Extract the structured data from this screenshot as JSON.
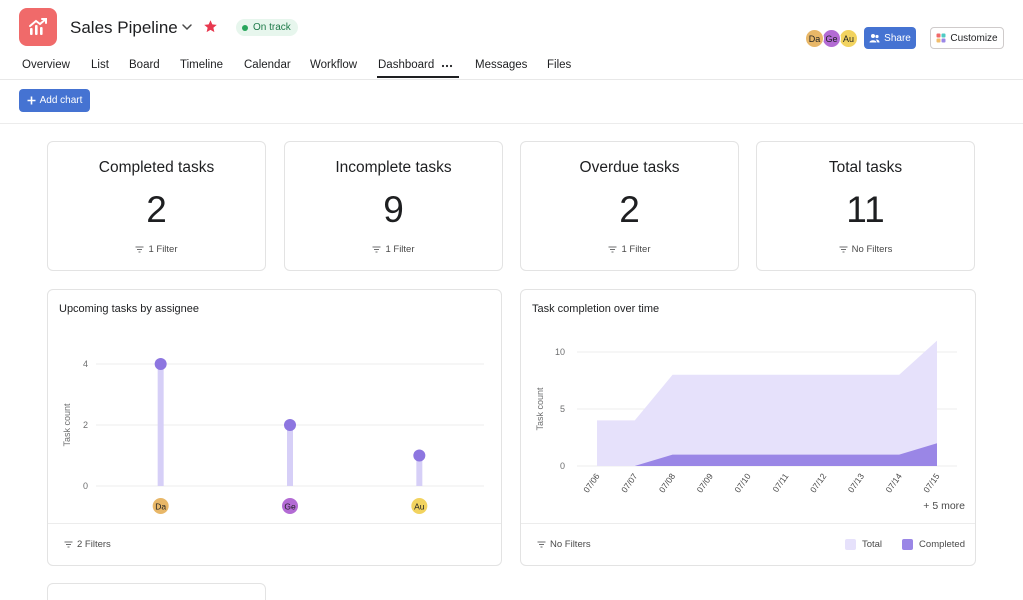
{
  "project": {
    "title": "Sales Pipeline",
    "status": "On track",
    "colors": {
      "brand": "#f06a6a",
      "accent": "#4573d2",
      "status": "#27a55b"
    }
  },
  "header": {
    "avatars": [
      {
        "initials": "Da",
        "color": "#e8b768"
      },
      {
        "initials": "Ge",
        "color": "#b36bd4"
      },
      {
        "initials": "Au",
        "color": "#f2d35f"
      }
    ],
    "share_label": "Share",
    "customize_label": "Customize"
  },
  "tabs": [
    {
      "label": "Overview"
    },
    {
      "label": "List"
    },
    {
      "label": "Board"
    },
    {
      "label": "Timeline"
    },
    {
      "label": "Calendar"
    },
    {
      "label": "Workflow"
    },
    {
      "label": "Dashboard",
      "active": true
    },
    {
      "label": "Messages"
    },
    {
      "label": "Files"
    }
  ],
  "toolbar": {
    "add_chart_label": "Add chart"
  },
  "stats": [
    {
      "title": "Completed tasks",
      "value": "2",
      "filter": "1 Filter"
    },
    {
      "title": "Incomplete tasks",
      "value": "9",
      "filter": "1 Filter"
    },
    {
      "title": "Overdue tasks",
      "value": "2",
      "filter": "1 Filter"
    },
    {
      "title": "Total tasks",
      "value": "11",
      "filter": "No Filters"
    }
  ],
  "charts": {
    "assignee": {
      "title": "Upcoming tasks by assignee",
      "filter": "2 Filters"
    },
    "completion": {
      "title": "Task completion over time",
      "filter": "No Filters",
      "more": "+ 5 more"
    }
  },
  "chart_data": [
    {
      "type": "bar",
      "title": "Upcoming tasks by assignee",
      "ylabel": "Task count",
      "categories": [
        "Da",
        "Ge",
        "Au"
      ],
      "values": [
        4,
        2,
        1
      ],
      "ylim": [
        0,
        4
      ],
      "yticks": [
        0,
        2,
        4
      ],
      "grid": true,
      "colors": {
        "bar": "#d6cff7",
        "point": "#8d76e0"
      }
    },
    {
      "type": "area",
      "title": "Task completion over time",
      "ylabel": "Task count",
      "x": [
        "07/06",
        "07/07",
        "07/08",
        "07/09",
        "07/10",
        "07/11",
        "07/12",
        "07/13",
        "07/14",
        "07/15"
      ],
      "series": [
        {
          "name": "Total",
          "values": [
            4,
            4,
            8,
            8,
            8,
            8,
            8,
            8,
            8,
            11
          ],
          "color": "#e6e1fb"
        },
        {
          "name": "Completed",
          "values": [
            0,
            0,
            1,
            1,
            1,
            1,
            1,
            1,
            1,
            2
          ],
          "color": "#9a86e6"
        }
      ],
      "ylim": [
        0,
        10
      ],
      "yticks": [
        0,
        5,
        10
      ],
      "grid": true,
      "legend": "bottom-right"
    }
  ]
}
